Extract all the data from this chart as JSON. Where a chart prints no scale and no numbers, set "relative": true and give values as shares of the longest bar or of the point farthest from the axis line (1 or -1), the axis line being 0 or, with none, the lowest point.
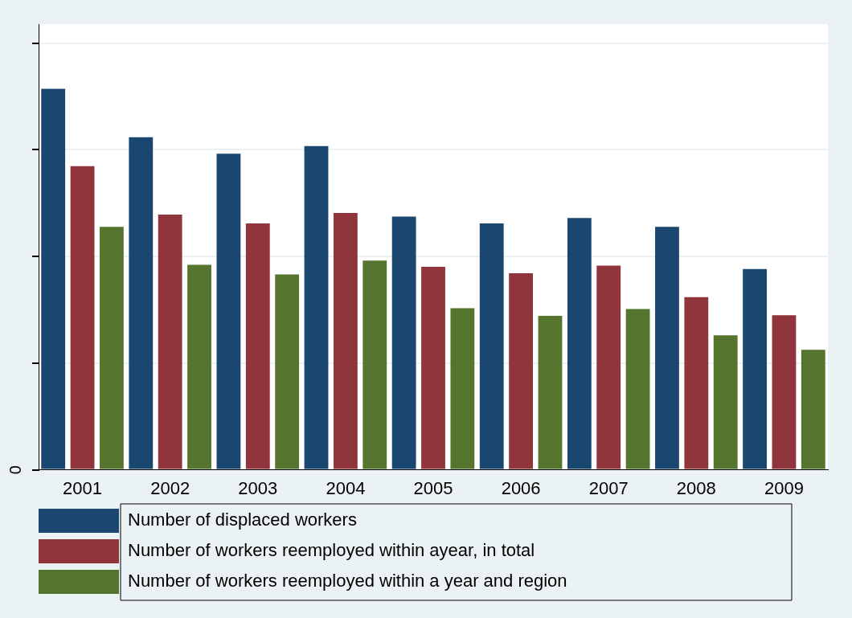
{
  "chart_data": {
    "type": "bar",
    "relative": true,
    "grid": "y",
    "legend": "bottom",
    "categories": [
      "2001",
      "2002",
      "2003",
      "2004",
      "2005",
      "2006",
      "2007",
      "2008",
      "2009"
    ],
    "annotations": [
      "0"
    ],
    "series": [
      {
        "name": "Number of displaced workers",
        "color": "#1a476f",
        "values": [
          1,
          0.873,
          0.83,
          0.85,
          0.665,
          0.647,
          0.661,
          0.638,
          0.527
        ]
      },
      {
        "name": "Number of workers reemployed within ayear, in total",
        "color": "#90353b",
        "values": [
          0.797,
          0.67,
          0.647,
          0.674,
          0.533,
          0.516,
          0.536,
          0.453,
          0.406
        ]
      },
      {
        "name": "Number of workers reemployed within a year and region",
        "color": "#55752f",
        "values": [
          0.638,
          0.538,
          0.513,
          0.549,
          0.424,
          0.404,
          0.422,
          0.353,
          0.315
        ]
      }
    ]
  }
}
